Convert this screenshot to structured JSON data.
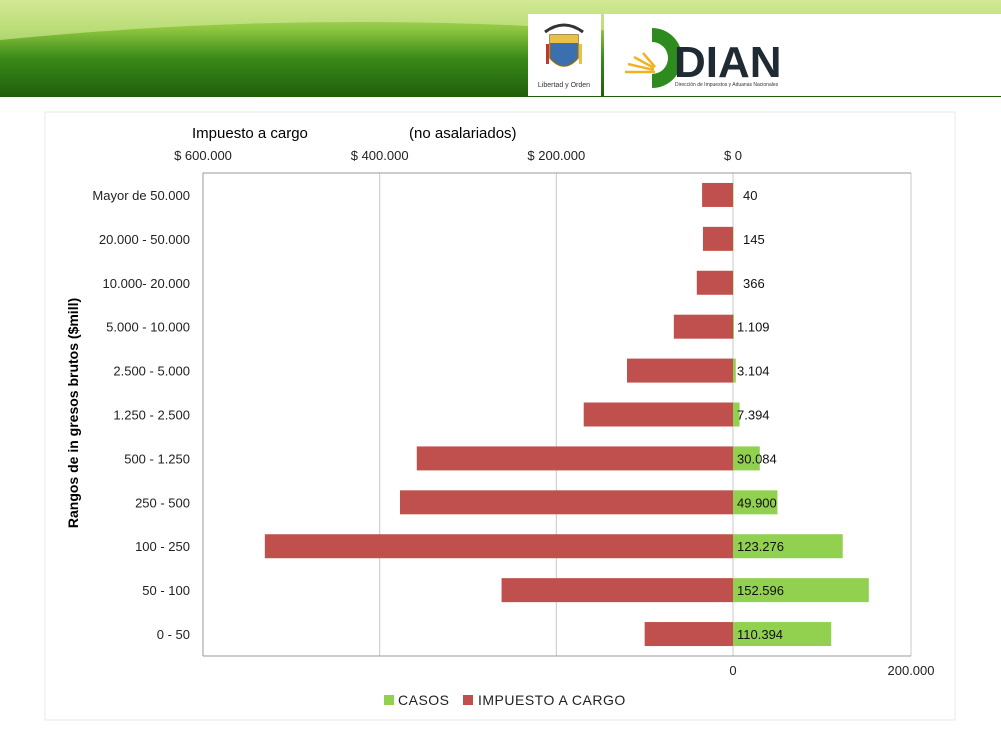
{
  "header": {
    "seal_caption": "Libertad y Orden",
    "logo_text": "DIAN",
    "logo_subtitle": "Dirección de Impuestos y Aduanas Nacionales"
  },
  "colors": {
    "casos": "#92d050",
    "impuesto": "#c0504d",
    "banner_dark": "#2f7a12",
    "banner_light": "#8dc63f"
  },
  "chart_data": {
    "type": "bar",
    "orientation": "horizontal",
    "title_left": "Impuesto a cargo",
    "title_right": "(no asalariados)",
    "ylabel": "Rangos de in gresos brutos  ($mill)",
    "top_axis_ticks": [
      "$ 600.000",
      "$ 400.000",
      "$ 200.000",
      "$ 0"
    ],
    "bottom_axis_ticks": [
      "0",
      "200.000"
    ],
    "impuesto_axis": [
      600000,
      0
    ],
    "casos_axis": [
      0,
      200000
    ],
    "grid": true,
    "legend_position": "bottom",
    "categories": [
      "Mayor de 50.000",
      "20.000 - 50.000",
      "10.000- 20.000",
      "5.000 - 10.000",
      "2.500 - 5.000",
      "1.250 - 2.500",
      "500 - 1.250",
      "250 - 500",
      "100 - 250",
      "50 - 100",
      "0 - 50"
    ],
    "series": [
      {
        "name": "CASOS",
        "values": [
          40,
          145,
          366,
          1109,
          3104,
          7394,
          30084,
          49900,
          123276,
          152596,
          110394
        ],
        "labels": [
          "40",
          "145",
          "366",
          "1.109",
          "3.104",
          "7.394",
          "30.084",
          "49.900",
          "123.276",
          "152.596",
          "110.394"
        ]
      },
      {
        "name": "IMPUESTO A CARGO",
        "values": [
          35000,
          34000,
          41000,
          67000,
          120000,
          169000,
          358000,
          377000,
          530000,
          262000,
          100000
        ]
      }
    ]
  }
}
